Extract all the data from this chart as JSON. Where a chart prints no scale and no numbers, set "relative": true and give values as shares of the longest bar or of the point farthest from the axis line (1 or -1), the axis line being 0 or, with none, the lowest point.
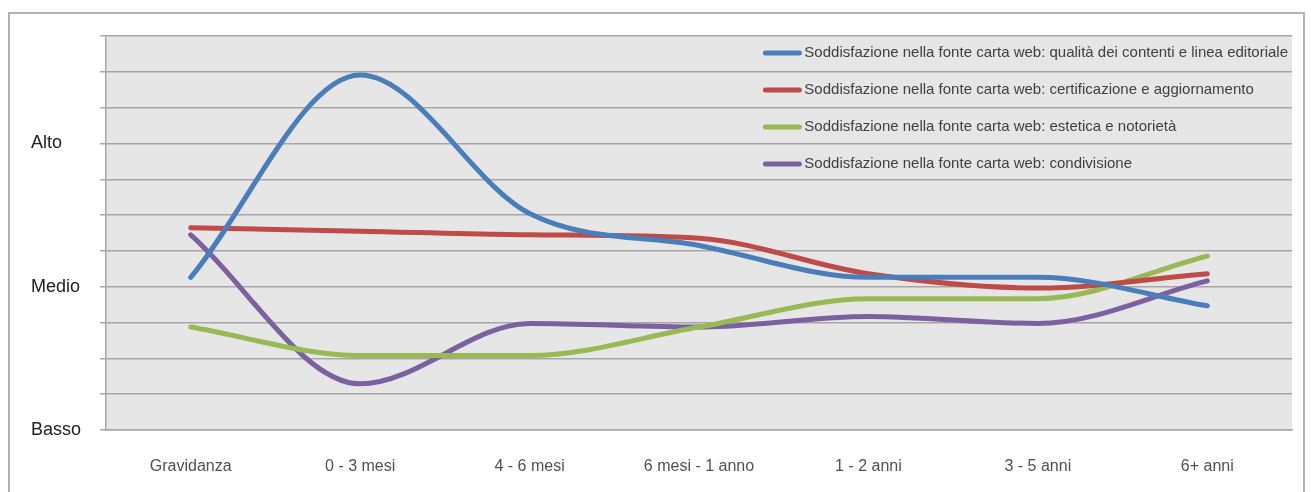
{
  "chart_data": {
    "type": "line",
    "relative": true,
    "categories": [
      "Gravidanza",
      "0 - 3 mesi",
      "4 - 6 mesi",
      "6 mesi - 1 anno",
      "1 - 2 anni",
      "3 - 5 anni",
      "6+ anni"
    ],
    "series": [
      {
        "name": "Soddisfazione nella fonte carta web: qualità dei contenti e linea editoriale",
        "color": "#4a7ebb",
        "values": [
          0.43,
          1,
          0.61,
          0.52,
          0.43,
          0.43,
          0.35
        ]
      },
      {
        "name": "Soddisfazione nella fonte carta web: certificazione e aggiornamento",
        "color": "#be4b48",
        "values": [
          0.57,
          0.56,
          0.55,
          0.54,
          0.44,
          0.4,
          0.44
        ]
      },
      {
        "name": "Soddisfazione nella fonte carta web: estetica e notorietà",
        "color": "#98b954",
        "values": [
          0.29,
          0.21,
          0.21,
          0.29,
          0.37,
          0.37,
          0.49
        ]
      },
      {
        "name": "Soddisfazione nella fonte carta web: condivisione",
        "color": "#7d60a0",
        "values": [
          0.55,
          0.13,
          0.3,
          0.29,
          0.32,
          0.3,
          0.42
        ]
      }
    ],
    "annotations": [
      "Alto",
      "Medio",
      "Basso"
    ],
    "grid": "y",
    "legend": "top right",
    "marker": "none"
  }
}
